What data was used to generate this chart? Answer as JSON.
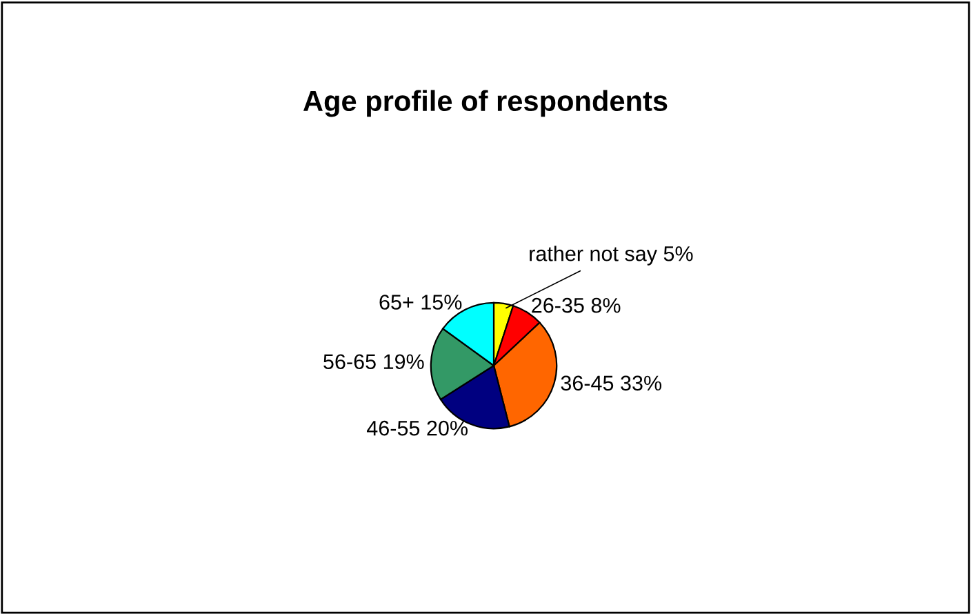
{
  "chart_data": {
    "type": "pie",
    "title": "Age profile of respondents",
    "categories": [
      "rather not say",
      "26-35",
      "36-45",
      "46-55",
      "56-65",
      "65+"
    ],
    "values": [
      5,
      8,
      33,
      20,
      19,
      15
    ],
    "value_labels": [
      "5%",
      "8%",
      "33%",
      "20%",
      "19%",
      "15%"
    ],
    "colors": [
      "#ffff00",
      "#ff0000",
      "#ff6600",
      "#000080",
      "#339966",
      "#00ffff"
    ],
    "legend": false
  }
}
